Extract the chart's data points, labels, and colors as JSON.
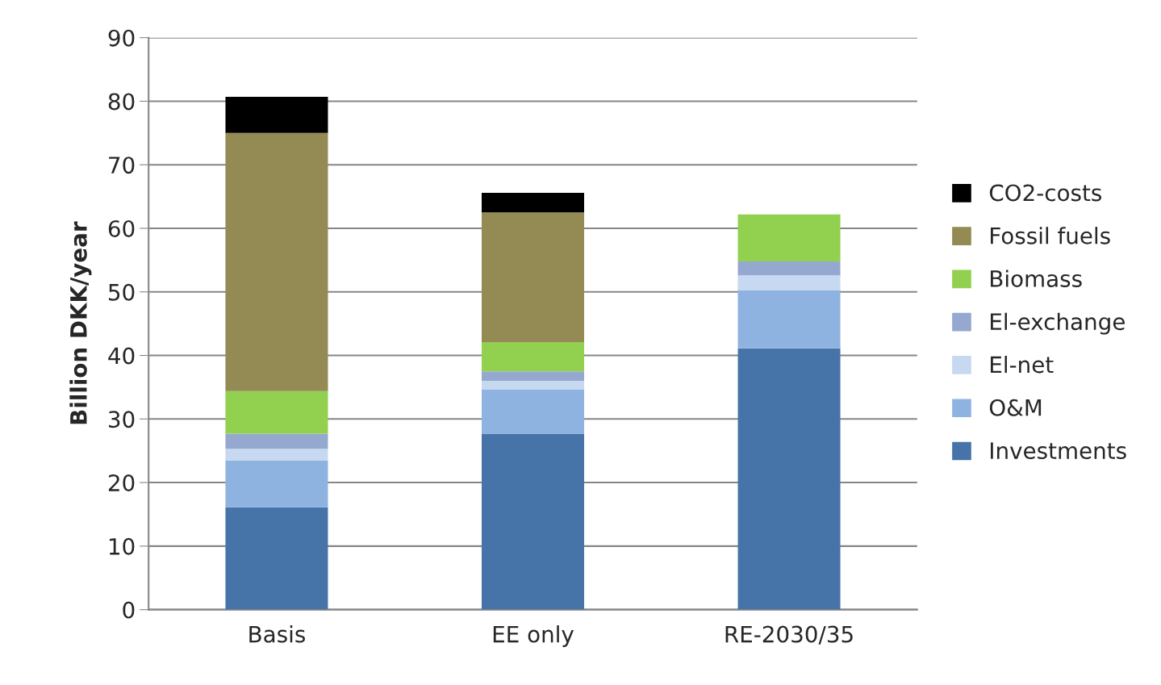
{
  "chart_data": {
    "type": "bar",
    "stacked": true,
    "ylabel": "Billion DKK/year",
    "categories": [
      "Basis",
      "EE only",
      "RE-2030/35"
    ],
    "series": [
      {
        "name": "Investments",
        "color": "#4674a8",
        "values": [
          16.1,
          27.7,
          41.1
        ]
      },
      {
        "name": "O&M",
        "color": "#8fb3e0",
        "values": [
          7.4,
          6.9,
          9.2
        ]
      },
      {
        "name": "El-net",
        "color": "#c6d9f0",
        "values": [
          1.8,
          1.4,
          2.3
        ]
      },
      {
        "name": "El-exchange",
        "color": "#95a9d0",
        "values": [
          2.4,
          1.5,
          2.2
        ]
      },
      {
        "name": "Biomass",
        "color": "#92d050",
        "values": [
          6.7,
          4.6,
          7.4
        ]
      },
      {
        "name": "Fossil fuels",
        "color": "#948a54",
        "values": [
          40.6,
          20.4,
          null
        ]
      },
      {
        "name": "CO2-costs",
        "color": "#000000",
        "values": [
          5.7,
          3.1,
          null
        ]
      }
    ],
    "ylim": [
      0,
      90
    ],
    "yticks": [
      0,
      10,
      20,
      30,
      40,
      50,
      60,
      70,
      80,
      90
    ],
    "grid": "y",
    "legend": "right"
  }
}
